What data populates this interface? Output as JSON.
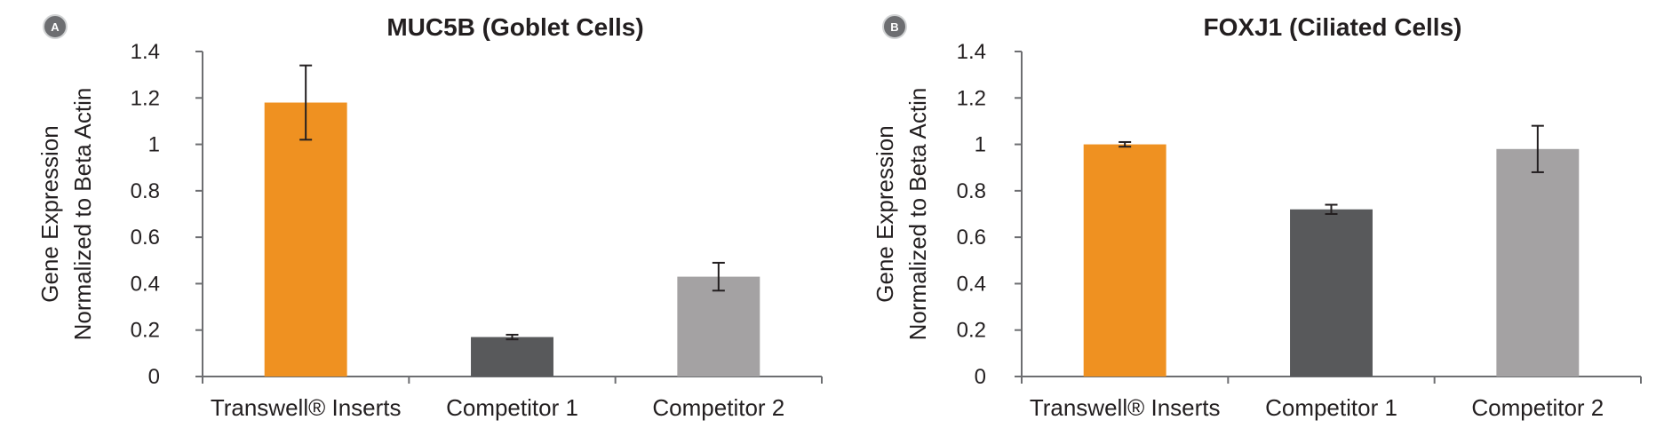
{
  "chart_data": [
    {
      "type": "bar",
      "badge": "A",
      "title": "MUC5B (Goblet Cells)",
      "ylabel": [
        "Gene Expression",
        "Normalized to Beta Actin"
      ],
      "categories": [
        "Transwell® Inserts",
        "Competitor 1",
        "Competitor 2"
      ],
      "values": [
        1.18,
        0.17,
        0.43
      ],
      "errors": [
        0.16,
        0.01,
        0.06
      ],
      "colors": [
        "#ef9121",
        "#58595b",
        "#a4a2a3"
      ],
      "ylim": [
        0,
        1.4
      ],
      "yticks": [
        "0",
        "0.2",
        "0.4",
        "0.6",
        "0.8",
        "1",
        "1.2",
        "1.4"
      ],
      "grid": false
    },
    {
      "type": "bar",
      "badge": "B",
      "title": "FOXJ1 (Ciliated Cells)",
      "ylabel": [
        "Gene Expression",
        "Normalized to Beta Actin"
      ],
      "categories": [
        "Transwell® Inserts",
        "Competitor 1",
        "Competitor 2"
      ],
      "values": [
        1.0,
        0.72,
        0.98
      ],
      "errors": [
        0.01,
        0.02,
        0.1
      ],
      "colors": [
        "#ef9121",
        "#58595b",
        "#a4a2a3"
      ],
      "ylim": [
        0,
        1.4
      ],
      "yticks": [
        "0",
        "0.2",
        "0.4",
        "0.6",
        "0.8",
        "1",
        "1.2",
        "1.4"
      ],
      "grid": false
    }
  ]
}
